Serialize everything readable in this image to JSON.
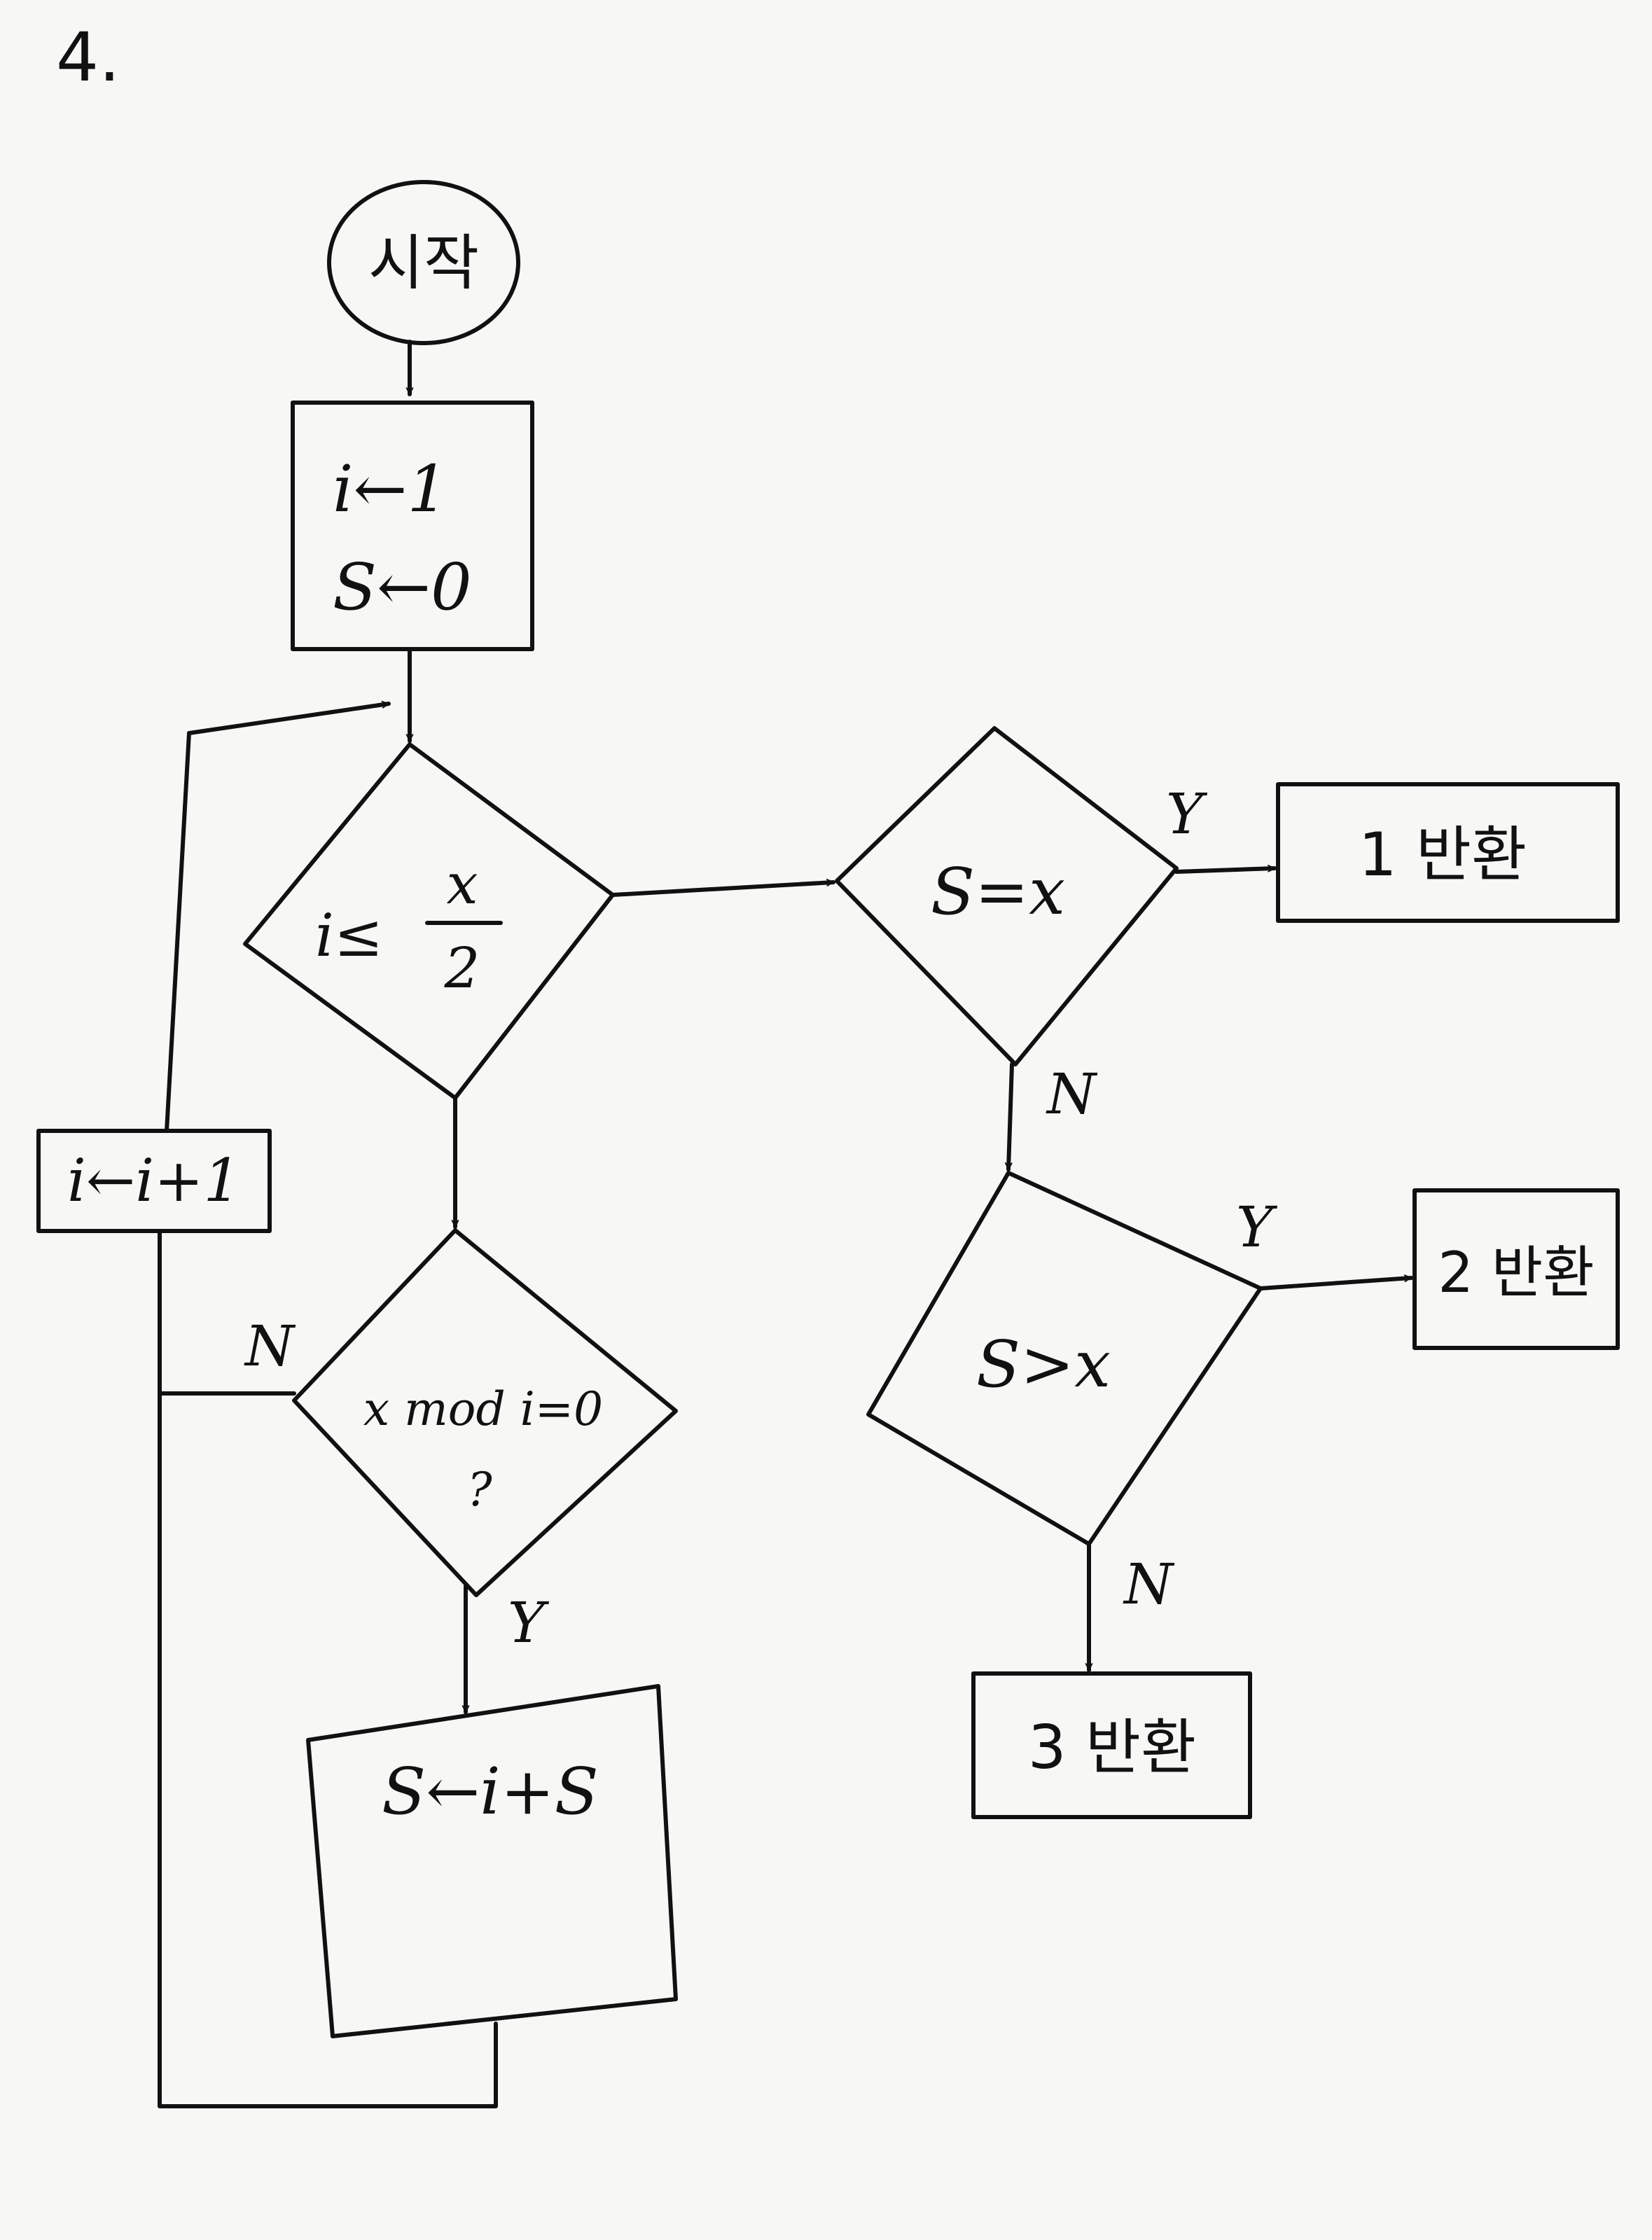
{
  "problem_number": "4.",
  "start": "시작",
  "init": {
    "line1": "i←1",
    "line2": "S←0"
  },
  "cond_loop": {
    "lhs": "i≤",
    "numerator": "x",
    "denominator": "2"
  },
  "cond_mod": {
    "line1": "x mod i=0",
    "line2": "?"
  },
  "update_s": "S←i+S",
  "increment": "i←i+1",
  "cond_equal": "S=x",
  "cond_greater": "S>x",
  "return1": "1 반환",
  "return2": "2 반환",
  "return3": "3 반환",
  "labels": {
    "yes": "Y",
    "no": "N"
  }
}
